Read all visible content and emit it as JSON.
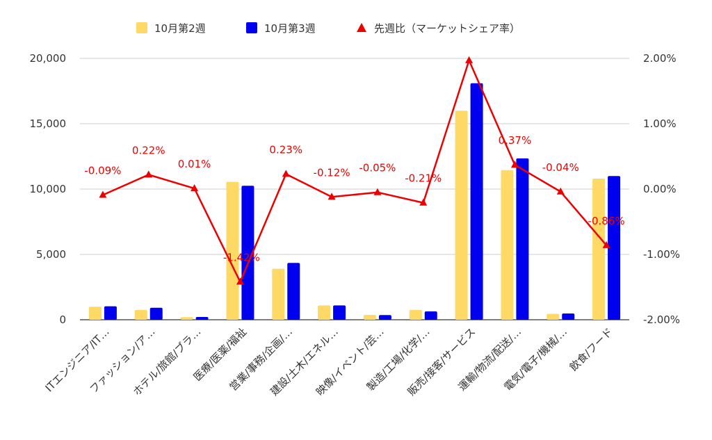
{
  "chart_data": {
    "type": "bar",
    "categories": [
      "ITエンジニア/IT…",
      "ファッション/ア…",
      "ホテル/旅館/ブラ…",
      "医療/医薬/福祉",
      "営業/事務/企画/…",
      "建設/土木/エネル…",
      "映像/イベント/芸…",
      "製造/工場/化学/…",
      "販売/接客/サービス",
      "運輸/物流/配送/…",
      "電気/電子/機械/…",
      "飲食/フード"
    ],
    "series": [
      {
        "name": "10月第2週",
        "type": "bar",
        "axis": "left",
        "color": "#FFD966",
        "values": [
          1000,
          750,
          200,
          10550,
          3900,
          1100,
          370,
          750,
          16000,
          11450,
          450,
          10800
        ]
      },
      {
        "name": "10月第3週",
        "type": "bar",
        "axis": "left",
        "color": "#0000EE",
        "values": [
          1030,
          920,
          210,
          10250,
          4350,
          1100,
          360,
          640,
          18100,
          12350,
          480,
          11000
        ]
      },
      {
        "name": "先週比（マーケットシェア率）",
        "type": "line",
        "axis": "right",
        "color": "#EE0000",
        "marker": "triangle",
        "values": [
          -0.09,
          0.22,
          0.01,
          -1.42,
          0.23,
          -0.12,
          -0.05,
          -0.21,
          1.97,
          0.37,
          -0.04,
          -0.86
        ],
        "data_labels": [
          "-0.09%",
          "0.22%",
          "0.01%",
          "-1.42%",
          "0.23%",
          "-0.12%",
          "-0.05%",
          "-0.21%",
          "",
          "0.37%",
          "-0.04%",
          "-0.86%"
        ]
      }
    ],
    "y_left": {
      "ylim": [
        0,
        20000
      ],
      "ticks": [
        0,
        5000,
        10000,
        15000,
        20000
      ],
      "tick_labels": [
        "0",
        "5,000",
        "10,000",
        "15,000",
        "20,000"
      ]
    },
    "y_right": {
      "ylim": [
        -2,
        2
      ],
      "ticks": [
        -2,
        -1,
        0,
        1,
        2
      ],
      "tick_labels": [
        "-2.00%",
        "-1.00%",
        "0.00%",
        "1.00%",
        "2.00%"
      ]
    },
    "grid": true,
    "legend": "top-center",
    "title": "",
    "xlabel": "",
    "ylabel": ""
  }
}
